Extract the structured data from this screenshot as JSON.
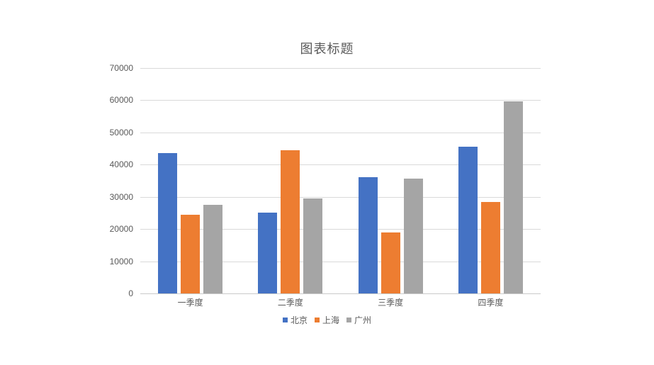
{
  "chart_data": {
    "type": "bar",
    "title": "图表标题",
    "categories": [
      "一季度",
      "二季度",
      "三季度",
      "四季度"
    ],
    "series": [
      {
        "name": "北京",
        "color": "#4472C4",
        "values": [
          43500,
          25000,
          36000,
          45500
        ]
      },
      {
        "name": "上海",
        "color": "#ED7D31",
        "values": [
          24500,
          44500,
          19000,
          28500
        ]
      },
      {
        "name": "广州",
        "color": "#A5A5A5",
        "values": [
          27500,
          29500,
          35700,
          59700
        ]
      }
    ],
    "xlabel": "",
    "ylabel": "",
    "ylim": [
      0,
      70000
    ],
    "ytick_step": 10000,
    "ytick_labels": [
      "0",
      "10000",
      "20000",
      "30000",
      "40000",
      "50000",
      "60000",
      "70000"
    ],
    "grid": "horizontal-only",
    "legend_position": "bottom-center",
    "colors": {
      "gridline": "#D9D9D9",
      "axis_line": "#C9C9C9",
      "axis_text": "#595959",
      "title_text": "#595959",
      "background": "#FFFFFF"
    }
  }
}
